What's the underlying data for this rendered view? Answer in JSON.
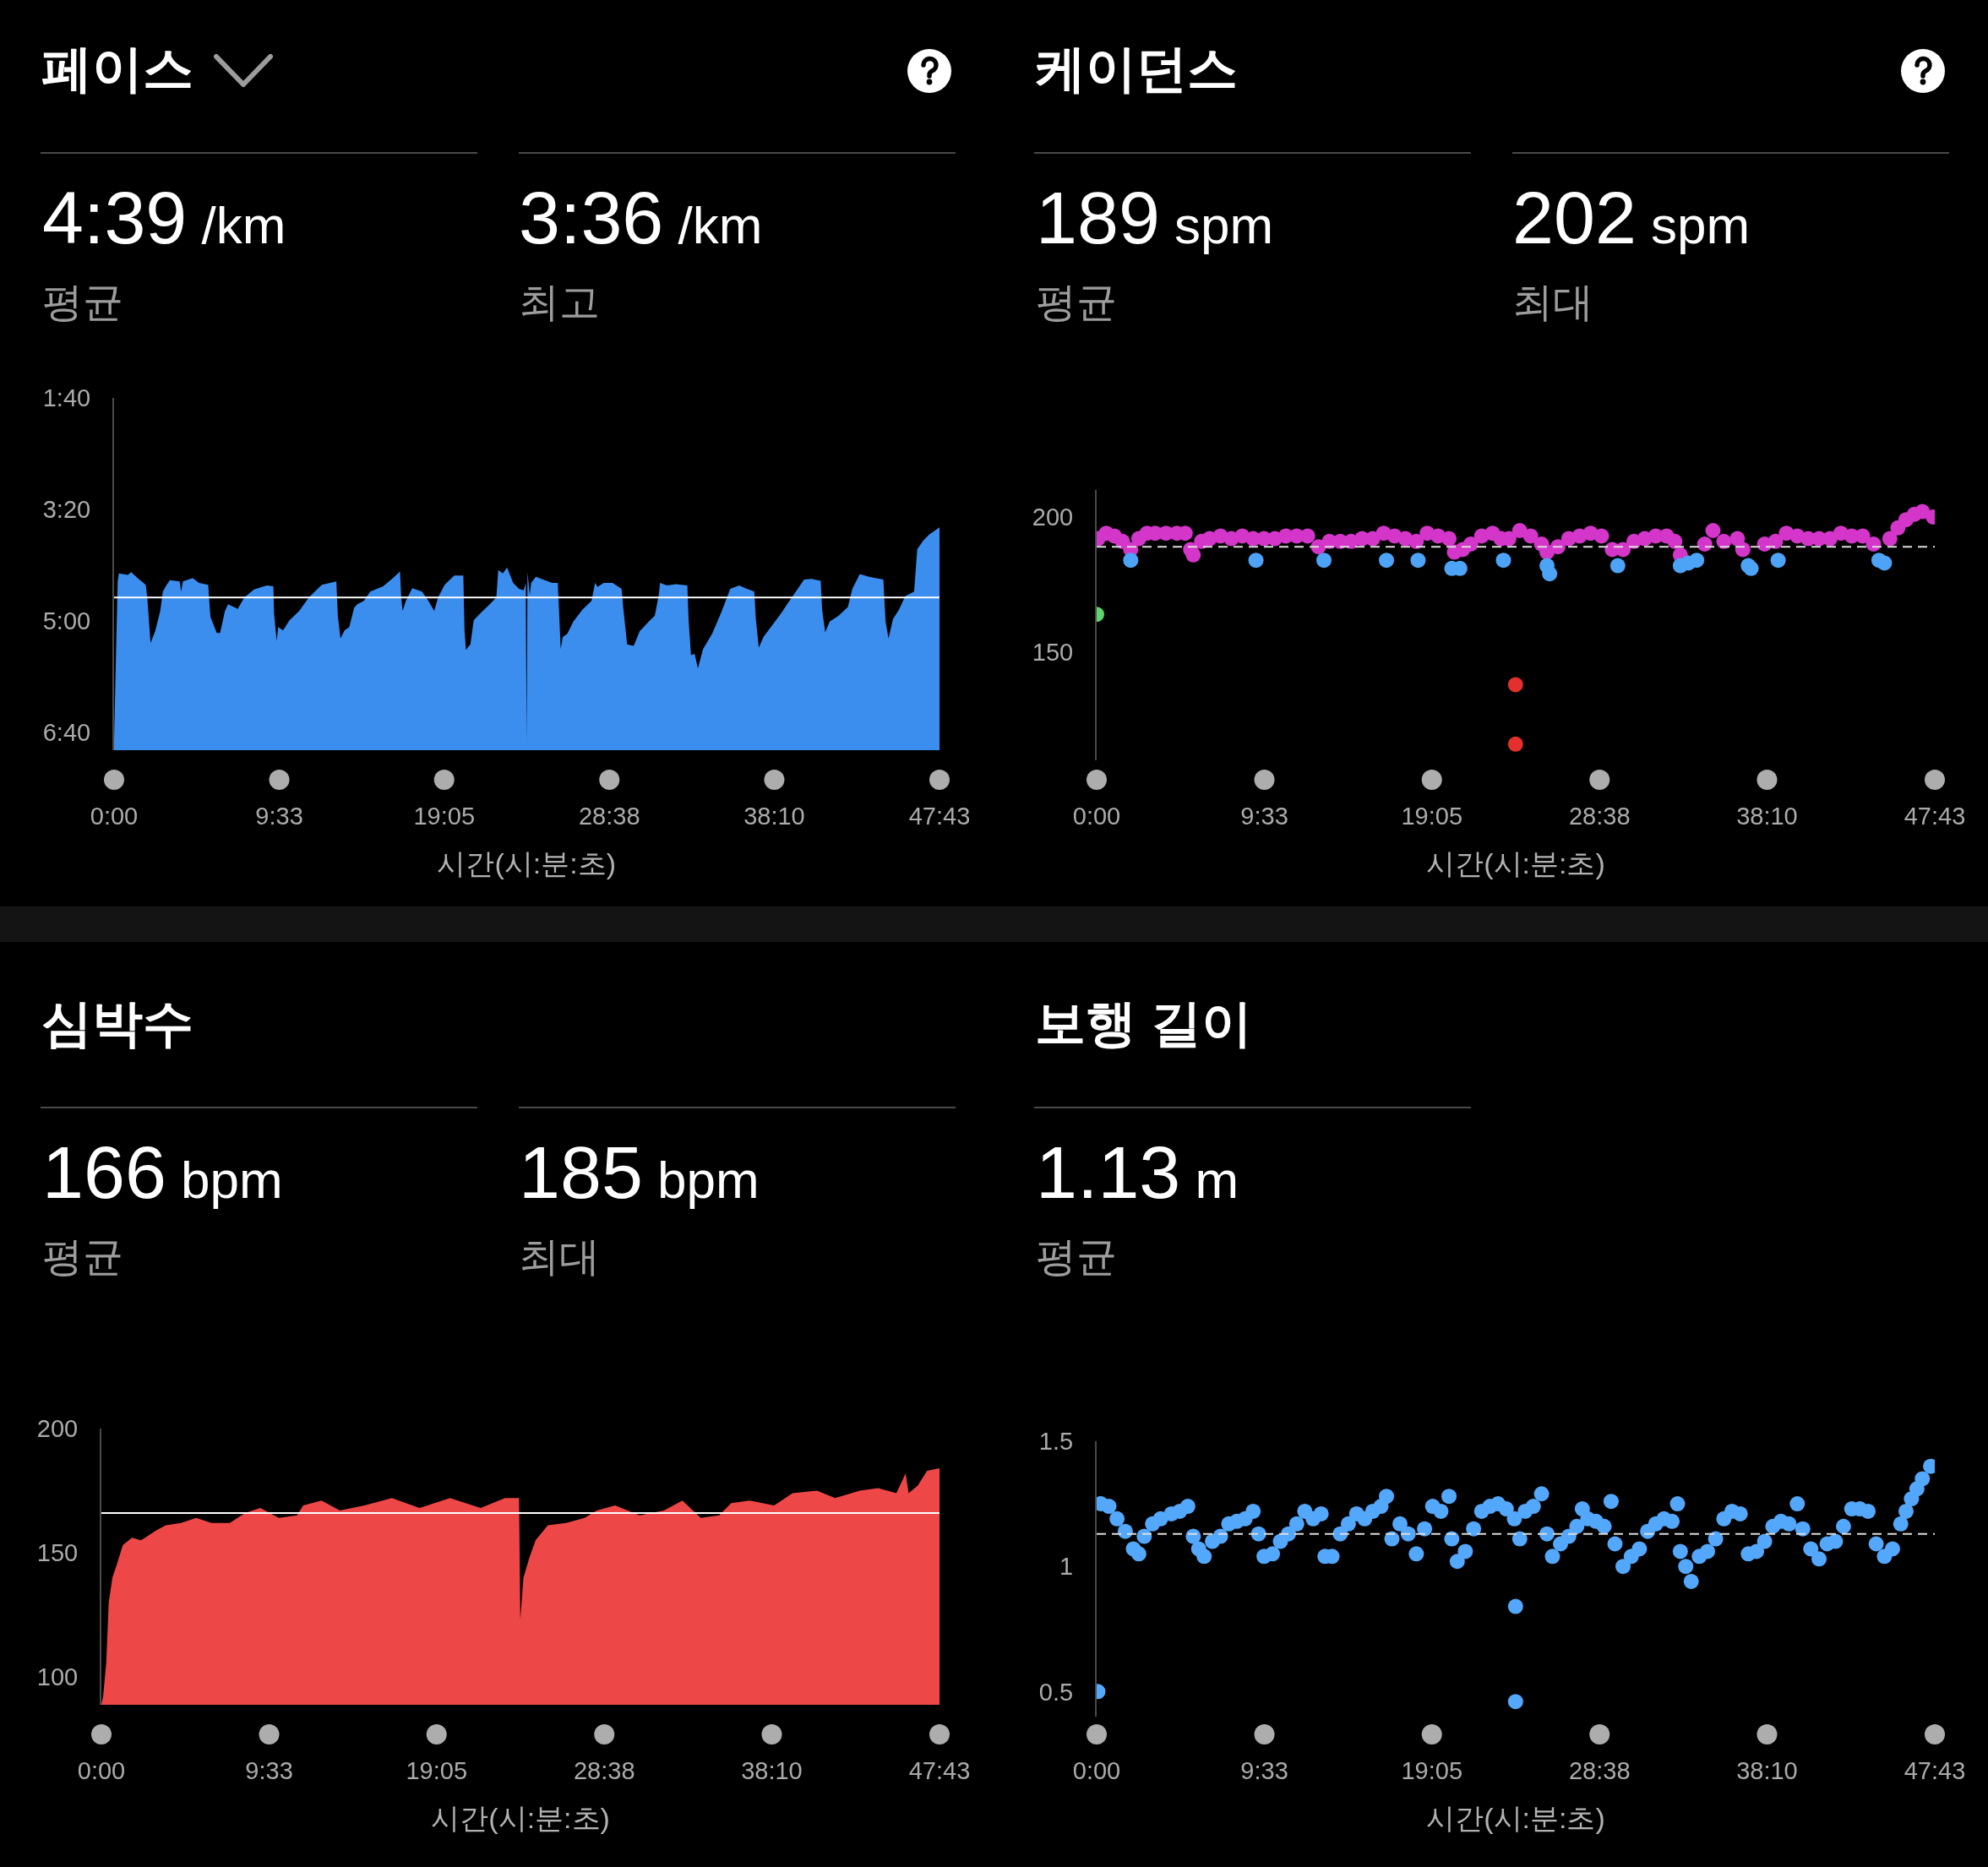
{
  "chart_data": [
    {
      "type": "area",
      "title": "페이스",
      "annotations": [
        "4:39 /km",
        "평균",
        "3:36 /km",
        "최고"
      ],
      "xlabel": "시간(시:분:초)",
      "x": [
        0,
        0.21,
        0.28,
        0.8,
        0.99,
        1.36,
        1.83,
        1.92,
        2.11,
        2.39,
        2.67,
        2.82,
        3.04,
        3.23,
        3.79,
        3.88,
        3.98,
        4.54,
        4.91,
        5.44,
        5.57,
        5.94,
        6.13,
        6.41,
        6.59,
        7.15,
        7.53,
        8.09,
        8.83,
        9.21,
        9.25,
        9.4,
        9.49,
        9.77,
        10.14,
        10.7,
        11.26,
        12.01,
        12.85,
        12.94,
        13.09,
        13.32,
        13.6,
        13.88,
        14.06,
        14.44,
        14.81,
        15.56,
        16.12,
        16.53,
        16.6,
        16.68,
        16.87,
        17.24,
        17.8,
        18.17,
        18.51,
        18.73,
        19.11,
        19.67,
        20.19,
        20.26,
        20.34,
        20.6,
        20.79,
        21.16,
        21.72,
        22.1,
        22.21,
        22.47,
        22.72,
        23.07,
        23.41,
        23.68,
        23.8,
        23.85,
        23.9,
        24.03,
        24.11,
        24.38,
        24.81,
        25.33,
        25.65,
        25.72,
        25.82,
        25.94,
        26.2,
        26.55,
        27.08,
        27.6,
        27.81,
        27.95,
        28.3,
        28.82,
        29.34,
        29.43,
        29.66,
        30.04,
        30.39,
        30.91,
        31.26,
        31.49,
        31.56,
        31.96,
        32.48,
        33.14,
        33.21,
        33.35,
        33.56,
        33.75,
        34.05,
        34.57,
        35.09,
        35.62,
        36.14,
        36.49,
        37.01,
        37.1,
        37.27,
        37.54,
        38.06,
        38.58,
        38.93,
        39.28,
        39.89,
        40.32,
        40.85,
        40.93,
        41.11,
        41.37,
        41.89,
        42.42,
        42.68,
        43.11,
        43.64,
        44.47,
        44.6,
        44.77,
        45.03,
        45.38,
        45.73,
        46.25,
        46.43,
        46.77,
        47.12,
        47.717
      ],
      "values": [
        6.78,
        4.41,
        4.29,
        4.31,
        4.27,
        4.36,
        4.46,
        4.65,
        5.33,
        5.14,
        4.85,
        4.56,
        4.46,
        4.39,
        4.41,
        4.56,
        4.41,
        4.36,
        4.43,
        4.46,
        4.94,
        5.18,
        5.18,
        4.85,
        4.75,
        4.82,
        4.65,
        4.53,
        4.47,
        4.48,
        4.89,
        5.3,
        5.09,
        5.14,
        4.99,
        4.85,
        4.65,
        4.46,
        4.41,
        4.94,
        5.26,
        5.14,
        5.09,
        4.8,
        4.75,
        4.7,
        4.56,
        4.48,
        4.36,
        4.26,
        4.65,
        4.85,
        4.7,
        4.51,
        4.56,
        4.7,
        4.85,
        4.65,
        4.46,
        4.32,
        4.32,
        5.14,
        5.43,
        5.35,
        4.99,
        4.89,
        4.75,
        4.65,
        4.24,
        4.29,
        4.2,
        4.43,
        4.52,
        4.54,
        4.43,
        6.79,
        4.27,
        4.61,
        4.43,
        4.34,
        4.38,
        4.43,
        4.43,
        4.83,
        5.42,
        5.24,
        5.19,
        5.01,
        4.83,
        4.7,
        4.43,
        4.49,
        4.43,
        4.43,
        4.52,
        4.79,
        5.35,
        5.37,
        5.15,
        5.01,
        4.92,
        4.61,
        4.43,
        4.47,
        4.45,
        4.47,
        4.97,
        5.51,
        5.49,
        5.71,
        5.42,
        5.19,
        4.88,
        4.52,
        4.47,
        4.51,
        4.56,
        4.97,
        5.4,
        5.24,
        5.06,
        4.88,
        4.74,
        4.61,
        4.38,
        4.37,
        4.4,
        4.83,
        5.17,
        5.01,
        4.92,
        4.79,
        4.52,
        4.3,
        4.34,
        4.38,
        5.01,
        5.26,
        4.97,
        4.83,
        4.63,
        4.56,
        3.93,
        3.8,
        3.71,
        3.6
      ],
      "color": "#3b8eee",
      "xlim": [
        0,
        47.717
      ],
      "xticks": [
        {
          "value": 0,
          "label": "0:00"
        },
        {
          "value": 9.55,
          "label": "9:33"
        },
        {
          "value": 19.083,
          "label": "19:05"
        },
        {
          "value": 28.633,
          "label": "28:38"
        },
        {
          "value": 38.167,
          "label": "38:10"
        },
        {
          "value": 47.717,
          "label": "47:43"
        }
      ],
      "ylim": [
        6.93,
        1.667
      ],
      "yticks": [
        {
          "value": 1.667,
          "label": "1:40"
        },
        {
          "value": 3.333,
          "label": "3:20"
        },
        {
          "value": 5,
          "label": "5:00"
        },
        {
          "value": 6.667,
          "label": "6:40"
        }
      ],
      "ref_lines": [
        {
          "axis": "y",
          "value": 4.65,
          "color": "#ffffff"
        }
      ]
    },
    {
      "type": "scatter",
      "title": "케이던스",
      "annotations": [
        "189 spm",
        "평균",
        "202 spm",
        "최대"
      ],
      "xlabel": "시간(시:분:초)",
      "x": [
        0,
        0.08,
        0.55,
        1.01,
        1.47,
        1.94,
        1.94,
        2.4,
        2.87,
        3.33,
        3.95,
        4.57,
        5.04,
        5.35,
        5.5,
        5.97,
        6.43,
        7.05,
        7.67,
        8.29,
        8.91,
        9.07,
        9.53,
        10.15,
        10.77,
        11.39,
        12.01,
        12.63,
        12.94,
        13.25,
        13.87,
        14.49,
        15.11,
        15.72,
        16.34,
        16.5,
        16.96,
        17.58,
        18.2,
        18.3,
        18.82,
        19.44,
        20.06,
        20.22,
        20.37,
        20.68,
        20.84,
        21.3,
        21.92,
        22.54,
        23.01,
        23.16,
        23.47,
        23.85,
        23.85,
        24.09,
        24.71,
        25.33,
        25.64,
        25.64,
        25.79,
        26.26,
        26.88,
        27.5,
        28.12,
        28.74,
        29.36,
        29.67,
        29.97,
        30.59,
        31.21,
        31.83,
        32.45,
        32.92,
        33.23,
        33.23,
        33.69,
        34.16,
        34.62,
        35.09,
        35.71,
        36.48,
        36.79,
        37.1,
        37.26,
        38.03,
        38.65,
        38.8,
        39.27,
        39.89,
        40.51,
        41.13,
        41.75,
        42.37,
        42.99,
        43.61,
        44.23,
        44.54,
        44.85,
        45.16,
        45.62,
        46.08,
        46.55,
        47.01,
        47.63
      ],
      "values": [
        164,
        192,
        194,
        193,
        191,
        188,
        184,
        192,
        194,
        194,
        194,
        194,
        194,
        188,
        186,
        191,
        192,
        193,
        192,
        193,
        192,
        184,
        192,
        192,
        193,
        193,
        193,
        189,
        184,
        191,
        191,
        191,
        192,
        192,
        194,
        184,
        193,
        192,
        191,
        184,
        194,
        193,
        192,
        181,
        187,
        181,
        188,
        190,
        193,
        194,
        192,
        184,
        192,
        138,
        116,
        195,
        193,
        190,
        187,
        182,
        179,
        189,
        192,
        193,
        194,
        193,
        188,
        182,
        188,
        191,
        192,
        193,
        193,
        191,
        186,
        182,
        183,
        184,
        190,
        195,
        191,
        192,
        188,
        182,
        181,
        190,
        191,
        184,
        194,
        193,
        192,
        192,
        192,
        194,
        193,
        193,
        190,
        184,
        183,
        192,
        196,
        199,
        201,
        202,
        200
      ],
      "colors": [
        "#5fd36c",
        "#d336c9",
        "#d336c9",
        "#d336c9",
        "#d336c9",
        "#d336c9",
        "#4da3f5",
        "#d336c9",
        "#d336c9",
        "#d336c9",
        "#d336c9",
        "#d336c9",
        "#d336c9",
        "#d336c9",
        "#d336c9",
        "#d336c9",
        "#d336c9",
        "#d336c9",
        "#d336c9",
        "#d336c9",
        "#d336c9",
        "#4da3f5",
        "#d336c9",
        "#d336c9",
        "#d336c9",
        "#d336c9",
        "#d336c9",
        "#d336c9",
        "#4da3f5",
        "#d336c9",
        "#d336c9",
        "#d336c9",
        "#d336c9",
        "#d336c9",
        "#d336c9",
        "#4da3f5",
        "#d336c9",
        "#d336c9",
        "#d336c9",
        "#4da3f5",
        "#d336c9",
        "#d336c9",
        "#d336c9",
        "#4da3f5",
        "#d336c9",
        "#4da3f5",
        "#d336c9",
        "#d336c9",
        "#d336c9",
        "#d336c9",
        "#d336c9",
        "#4da3f5",
        "#d336c9",
        "#e3302c",
        "#e3302c",
        "#d336c9",
        "#d336c9",
        "#d336c9",
        "#d336c9",
        "#4da3f5",
        "#4da3f5",
        "#d336c9",
        "#d336c9",
        "#d336c9",
        "#d336c9",
        "#d336c9",
        "#d336c9",
        "#4da3f5",
        "#d336c9",
        "#d336c9",
        "#d336c9",
        "#d336c9",
        "#d336c9",
        "#d336c9",
        "#d336c9",
        "#4da3f5",
        "#4da3f5",
        "#4da3f5",
        "#d336c9",
        "#d336c9",
        "#d336c9",
        "#d336c9",
        "#d336c9",
        "#4da3f5",
        "#4da3f5",
        "#d336c9",
        "#d336c9",
        "#4da3f5",
        "#d336c9",
        "#d336c9",
        "#d336c9",
        "#d336c9",
        "#d336c9",
        "#d336c9",
        "#d336c9",
        "#d336c9",
        "#d336c9",
        "#4da3f5",
        "#4da3f5",
        "#d336c9",
        "#d336c9",
        "#d336c9",
        "#d336c9",
        "#d336c9",
        "#d336c9"
      ],
      "marker": "circle",
      "xlim": [
        0,
        47.717
      ],
      "xticks": [
        {
          "value": 0,
          "label": "0:00"
        },
        {
          "value": 9.55,
          "label": "9:33"
        },
        {
          "value": 19.083,
          "label": "19:05"
        },
        {
          "value": 28.633,
          "label": "28:38"
        },
        {
          "value": 38.167,
          "label": "38:10"
        },
        {
          "value": 47.717,
          "label": "47:43"
        }
      ],
      "ylim": [
        110,
        210
      ],
      "yticks": [
        150,
        200
      ],
      "ref_lines": [
        {
          "axis": "y",
          "value": 189,
          "color": "#dddddd",
          "line_style": "dashed"
        }
      ]
    },
    {
      "type": "area",
      "title": "심박수",
      "annotations": [
        "166 bpm",
        "평균",
        "185 bpm",
        "최대"
      ],
      "xlabel": "시간(시:분:초)",
      "x": [
        0,
        0.1,
        0.28,
        0.42,
        0.63,
        0.87,
        1.22,
        1.74,
        2.26,
        3.13,
        3.66,
        4.53,
        5.4,
        6.27,
        7.31,
        8.18,
        9.05,
        10.1,
        11.14,
        11.49,
        12.53,
        13.58,
        14.97,
        16.54,
        18.11,
        19.85,
        21.59,
        22.98,
        23.78,
        23.85,
        24.03,
        24.37,
        24.72,
        25.42,
        26.46,
        27.51,
        28.2,
        29.25,
        30.64,
        32.03,
        33.08,
        34.12,
        35.17,
        35.86,
        36.91,
        38.3,
        39.35,
        40.74,
        41.78,
        43.18,
        44.22,
        45.26,
        45.79,
        45.96,
        46.48,
        47.01,
        47.717
      ],
      "values": [
        89,
        92,
        106,
        130,
        140,
        145,
        153,
        156,
        155,
        159,
        161,
        162,
        164,
        162,
        162,
        166,
        168,
        164,
        165,
        169,
        171,
        167,
        169,
        172,
        168,
        172,
        168,
        172,
        172,
        123,
        140,
        148,
        155,
        161,
        162,
        164,
        167,
        169,
        165,
        167,
        171,
        164,
        165,
        170,
        171,
        169,
        174,
        175,
        172,
        175,
        176,
        174,
        182,
        174,
        177,
        183,
        184
      ],
      "color": "#ee4747",
      "xlim": [
        0,
        47.717
      ],
      "xticks": [
        {
          "value": 0,
          "label": "0:00"
        },
        {
          "value": 9.55,
          "label": "9:33"
        },
        {
          "value": 19.083,
          "label": "19:05"
        },
        {
          "value": 28.633,
          "label": "28:38"
        },
        {
          "value": 38.167,
          "label": "38:10"
        },
        {
          "value": 47.717,
          "label": "47:43"
        }
      ],
      "ylim": [
        88.7,
        200
      ],
      "yticks": [
        100,
        150,
        200
      ],
      "ref_lines": [
        {
          "axis": "y",
          "value": 166,
          "color": "#ffffff"
        }
      ]
    },
    {
      "type": "scatter",
      "title": "보행 길이",
      "annotations": [
        "1.13 m",
        "평균"
      ],
      "xlabel": "시간(시:분:초)",
      "x": [
        0.07,
        0.24,
        0.7,
        1.16,
        1.63,
        2.09,
        2.4,
        2.71,
        3.18,
        3.64,
        4.26,
        4.73,
        5.19,
        5.5,
        5.81,
        6.12,
        6.59,
        7.05,
        7.52,
        7.98,
        8.45,
        8.91,
        9.22,
        9.53,
        10.01,
        10.46,
        10.92,
        11.39,
        11.85,
        12.32,
        12.78,
        13,
        13.4,
        13.87,
        14.33,
        14.8,
        15.26,
        15.72,
        16.19,
        16.5,
        16.81,
        17.27,
        17.74,
        18.2,
        18.67,
        19.13,
        19.6,
        20.06,
        20.22,
        20.53,
        20.99,
        21.46,
        21.92,
        22.39,
        22.85,
        23.32,
        23.78,
        23.85,
        23.85,
        24.09,
        24.4,
        24.86,
        25.33,
        25.64,
        25.95,
        26.41,
        26.88,
        27.34,
        27.65,
        27.96,
        28.43,
        28.89,
        29.29,
        29.51,
        29.97,
        30.44,
        30.9,
        31.37,
        31.83,
        32.3,
        32.76,
        33.07,
        33.23,
        33.54,
        33.85,
        34.31,
        34.78,
        35.24,
        35.71,
        36.17,
        36.64,
        37.1,
        37.57,
        38.03,
        38.5,
        38.96,
        39.42,
        39.89,
        40.2,
        40.66,
        41.13,
        41.59,
        42.06,
        42.52,
        42.99,
        43.45,
        43.92,
        44.38,
        44.85,
        45.31,
        45.78,
        46.08,
        46.39,
        46.7,
        47.01,
        47.48
      ],
      "values": [
        0.5,
        1.25,
        1.24,
        1.19,
        1.14,
        1.07,
        1.05,
        1.12,
        1.17,
        1.19,
        1.21,
        1.22,
        1.24,
        1.12,
        1.07,
        1.04,
        1.1,
        1.12,
        1.17,
        1.18,
        1.19,
        1.22,
        1.13,
        1.04,
        1.05,
        1.1,
        1.13,
        1.17,
        1.22,
        1.19,
        1.21,
        1.04,
        1.04,
        1.13,
        1.17,
        1.21,
        1.19,
        1.22,
        1.24,
        1.28,
        1.11,
        1.17,
        1.13,
        1.05,
        1.15,
        1.24,
        1.22,
        1.28,
        1.11,
        1.02,
        1.06,
        1.15,
        1.22,
        1.24,
        1.25,
        1.23,
        1.19,
        0.84,
        0.46,
        1.11,
        1.22,
        1.24,
        1.29,
        1.13,
        1.04,
        1.09,
        1.12,
        1.16,
        1.23,
        1.19,
        1.18,
        1.16,
        1.26,
        1.09,
        1,
        1.04,
        1.07,
        1.14,
        1.17,
        1.19,
        1.18,
        1.25,
        1.06,
        1,
        0.94,
        1.04,
        1.06,
        1.11,
        1.19,
        1.22,
        1.21,
        1.05,
        1.06,
        1.1,
        1.16,
        1.18,
        1.17,
        1.25,
        1.15,
        1.07,
        1.03,
        1.09,
        1.1,
        1.16,
        1.23,
        1.23,
        1.22,
        1.09,
        1.04,
        1.07,
        1.17,
        1.22,
        1.27,
        1.31,
        1.35,
        1.4
      ],
      "color": "#54a8fc",
      "marker": "circle",
      "xlim": [
        0,
        47.717
      ],
      "xticks": [
        {
          "value": 0,
          "label": "0:00"
        },
        {
          "value": 9.55,
          "label": "9:33"
        },
        {
          "value": 19.083,
          "label": "19:05"
        },
        {
          "value": 28.633,
          "label": "28:38"
        },
        {
          "value": 38.167,
          "label": "38:10"
        },
        {
          "value": 47.717,
          "label": "47:43"
        }
      ],
      "ylim": [
        0.4,
        1.5
      ],
      "yticks": [
        0.5,
        1,
        1.5
      ],
      "ref_lines": [
        {
          "axis": "y",
          "value": 1.13,
          "color": "#dddddd",
          "line_style": "dashed"
        }
      ]
    }
  ]
}
